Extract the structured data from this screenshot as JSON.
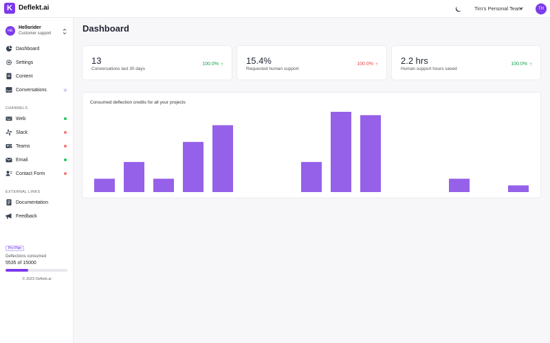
{
  "app": {
    "brand": "Deflekt.ai",
    "logo_letter": "K"
  },
  "topbar": {
    "team": "Tim's Personal Team",
    "user_initials": "TH",
    "theme_icon": "moon-icon"
  },
  "project": {
    "initials": "HE",
    "name": "Hellorider",
    "subtitle": "Customer support"
  },
  "nav": [
    {
      "label": "Dashboard",
      "icon": "dashboard-icon"
    },
    {
      "label": "Settings",
      "icon": "gear-icon"
    },
    {
      "label": "Content",
      "icon": "document-icon"
    },
    {
      "label": "Conversations",
      "icon": "inbox-icon",
      "badge": "0"
    }
  ],
  "channels": {
    "heading": "CHANNELS",
    "items": [
      {
        "label": "Web",
        "icon": "keyboard-icon",
        "status": "#22c55e"
      },
      {
        "label": "Slack",
        "icon": "slack-icon",
        "status": "#f87171"
      },
      {
        "label": "Teams",
        "icon": "teams-icon",
        "status": "#f87171"
      },
      {
        "label": "Email",
        "icon": "mail-icon",
        "status": "#22c55e"
      },
      {
        "label": "Contact Form",
        "icon": "contact-icon",
        "status": "#f87171"
      }
    ]
  },
  "external": {
    "heading": "EXTERNAL LINKS",
    "items": [
      {
        "label": "Documentation",
        "icon": "book-icon"
      },
      {
        "label": "Feedback",
        "icon": "megaphone-icon"
      }
    ]
  },
  "plan": {
    "badge": "Pro Plan",
    "consumed_label": "Deflections consumed",
    "used": "5535",
    "of_text": "of",
    "total": "15000",
    "fraction": 0.369
  },
  "copyright": "© 2023 Deflekt.ai",
  "page": {
    "title": "Dashboard"
  },
  "stats": [
    {
      "value": "13",
      "label": "Conversations last 30 days",
      "change": "100.0%",
      "direction": "up"
    },
    {
      "value": "15.4%",
      "label": "Requested human support",
      "change": "100.0%",
      "direction": "down"
    },
    {
      "value": "2.2 hrs",
      "label": "Human support hours saved",
      "change": "100.0%",
      "direction": "up"
    }
  ],
  "colors": {
    "accent": "#7c3aed",
    "bar": "#9561e8",
    "up": "#16a34a",
    "down": "#ef4444"
  },
  "chart_data": {
    "type": "bar",
    "title": "Consumed deflection credits for all your projects",
    "values": [
      2,
      4.5,
      2,
      7.5,
      10,
      0,
      0,
      4.5,
      12,
      11.5,
      0,
      0,
      2,
      0,
      1
    ],
    "ylim": [
      0,
      12
    ],
    "grid": false,
    "legend": "none"
  }
}
